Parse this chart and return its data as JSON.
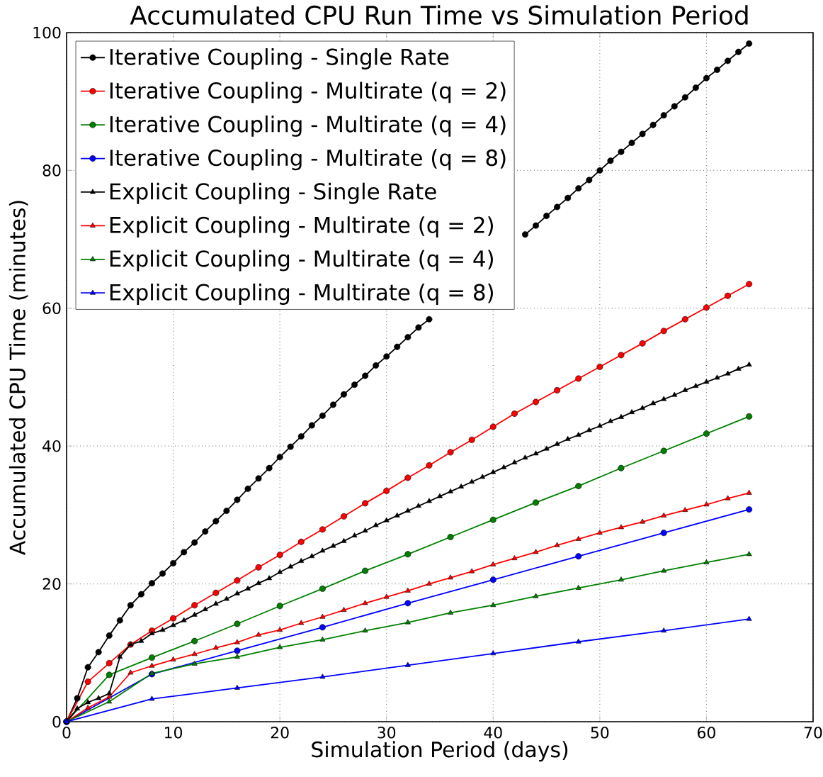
{
  "chart_data": {
    "type": "line",
    "title": "Accumulated CPU Run Time vs Simulation Period",
    "xlabel": "Simulation Period (days)",
    "ylabel": "Accumulated CPU Time (minutes)",
    "xlim": [
      0,
      70
    ],
    "ylim": [
      0,
      100
    ],
    "xticks": [
      0,
      10,
      20,
      30,
      40,
      50,
      60,
      70
    ],
    "yticks": [
      0,
      20,
      40,
      60,
      80,
      100
    ],
    "grid": true,
    "legend": "top left",
    "line_style": "solid",
    "series": [
      {
        "name": "Iterative Coupling - Single Rate",
        "color": "#000000",
        "marker": "circle",
        "x": [
          0,
          1,
          2,
          3,
          4,
          5,
          6,
          7,
          8,
          9,
          10,
          11,
          12,
          13,
          14,
          15,
          16,
          17,
          18,
          19,
          20,
          21,
          22,
          23,
          24,
          25,
          26,
          27,
          28,
          29,
          30,
          31,
          32,
          33,
          34,
          35,
          36,
          37,
          38,
          39,
          40,
          41,
          42,
          43,
          44,
          45,
          46,
          47,
          48,
          49,
          50,
          51,
          52,
          53,
          54,
          55,
          56,
          57,
          58,
          59,
          60,
          61,
          62,
          63,
          64
        ],
        "values": [
          0,
          3.4,
          7.9,
          10.1,
          12.5,
          14.7,
          16.9,
          18.5,
          20.1,
          21.5,
          23.0,
          24.6,
          26.0,
          27.6,
          29.1,
          30.6,
          32.2,
          33.8,
          35.3,
          36.8,
          38.4,
          39.9,
          41.4,
          43.0,
          44.4,
          46.0,
          47.5,
          48.9,
          50.2,
          51.7,
          53.0,
          54.4,
          55.8,
          57.2,
          58.4,
          null,
          null,
          null,
          null,
          null,
          null,
          null,
          null,
          70.7,
          72.0,
          73.4,
          74.7,
          76.0,
          77.4,
          78.6,
          80.0,
          81.4,
          82.7,
          84.0,
          85.3,
          86.6,
          88.0,
          89.3,
          90.6,
          92.0,
          93.4,
          94.6,
          95.9,
          97.2,
          98.4
        ]
      },
      {
        "name": "Iterative Coupling - Multirate (q = 2)",
        "color": "#ff0000",
        "marker": "circle",
        "x": [
          0,
          2,
          4,
          6,
          8,
          10,
          12,
          14,
          16,
          18,
          20,
          22,
          24,
          26,
          28,
          30,
          32,
          34,
          36,
          38,
          40,
          42,
          44,
          46,
          48,
          50,
          52,
          54,
          56,
          58,
          60,
          62,
          64
        ],
        "values": [
          0,
          5.8,
          8.5,
          11.2,
          13.2,
          15.0,
          16.9,
          18.7,
          20.5,
          22.4,
          24.2,
          26.1,
          27.9,
          29.8,
          31.7,
          33.5,
          35.4,
          37.2,
          39.1,
          40.9,
          42.8,
          44.7,
          46.4,
          48.1,
          49.8,
          51.5,
          53.2,
          54.9,
          56.7,
          58.4,
          60.1,
          61.8,
          63.5
        ]
      },
      {
        "name": "Iterative Coupling - Multirate (q = 4)",
        "color": "#008000",
        "marker": "circle",
        "x": [
          0,
          4,
          8,
          12,
          16,
          20,
          24,
          28,
          32,
          36,
          40,
          44,
          48,
          52,
          56,
          60,
          64
        ],
        "values": [
          0,
          6.8,
          9.3,
          11.7,
          14.2,
          16.8,
          19.3,
          21.9,
          24.3,
          26.8,
          29.3,
          31.8,
          34.2,
          36.8,
          39.3,
          41.8,
          44.3
        ]
      },
      {
        "name": "Iterative Coupling - Multirate (q = 8)",
        "color": "#0000ff",
        "marker": "circle",
        "x": [
          0,
          8,
          16,
          24,
          32,
          40,
          48,
          56,
          64
        ],
        "values": [
          0,
          6.9,
          10.3,
          13.7,
          17.2,
          20.6,
          24.0,
          27.4,
          30.8
        ]
      },
      {
        "name": "Explicit Coupling - Single Rate",
        "color": "#000000",
        "marker": "triangle",
        "x": [
          0,
          1,
          2,
          3,
          4,
          5,
          6,
          7,
          8,
          9,
          10,
          11,
          12,
          13,
          14,
          15,
          16,
          17,
          18,
          19,
          20,
          21,
          22,
          23,
          24,
          25,
          26,
          27,
          28,
          29,
          30,
          31,
          32,
          33,
          34,
          35,
          36,
          37,
          38,
          39,
          40,
          41,
          42,
          43,
          44,
          45,
          46,
          47,
          48,
          49,
          50,
          51,
          52,
          53,
          54,
          55,
          56,
          57,
          58,
          59,
          60,
          61,
          62,
          63,
          64
        ],
        "values": [
          0,
          1.9,
          2.8,
          3.4,
          4.1,
          9.4,
          11.2,
          11.7,
          12.8,
          13.3,
          14.0,
          14.7,
          15.5,
          16.3,
          17.1,
          17.8,
          18.6,
          19.3,
          20.1,
          20.8,
          21.7,
          22.5,
          23.3,
          24.0,
          24.8,
          25.5,
          26.2,
          27.0,
          27.7,
          28.5,
          29.2,
          29.9,
          30.6,
          31.3,
          32.0,
          32.7,
          33.4,
          34.1,
          34.8,
          35.5,
          36.2,
          36.9,
          37.6,
          38.3,
          38.9,
          39.6,
          40.3,
          41.0,
          41.6,
          42.3,
          42.9,
          43.6,
          44.2,
          44.9,
          45.5,
          46.2,
          46.8,
          47.4,
          48.1,
          48.7,
          49.3,
          49.9,
          50.5,
          51.2,
          51.8
        ]
      },
      {
        "name": "Explicit Coupling - Multirate (q = 2)",
        "color": "#ff0000",
        "marker": "triangle",
        "x": [
          0,
          2,
          4,
          6,
          8,
          10,
          12,
          14,
          16,
          18,
          20,
          22,
          24,
          26,
          28,
          30,
          32,
          34,
          36,
          38,
          40,
          42,
          44,
          46,
          48,
          50,
          52,
          54,
          56,
          58,
          60,
          62,
          64
        ],
        "values": [
          0,
          2.0,
          3.6,
          7.1,
          8.1,
          9.0,
          9.8,
          10.7,
          11.5,
          12.6,
          13.3,
          14.3,
          15.2,
          16.2,
          17.2,
          18.1,
          19.0,
          20.0,
          20.9,
          21.8,
          22.8,
          23.7,
          24.6,
          25.6,
          26.5,
          27.4,
          28.2,
          29.0,
          29.9,
          30.7,
          31.5,
          32.4,
          33.2
        ]
      },
      {
        "name": "Explicit Coupling - Multirate (q = 4)",
        "color": "#008000",
        "marker": "triangle",
        "x": [
          0,
          4,
          8,
          12,
          16,
          20,
          24,
          28,
          32,
          36,
          40,
          44,
          48,
          52,
          56,
          60,
          64
        ],
        "values": [
          0,
          2.9,
          7.0,
          8.4,
          9.4,
          10.8,
          11.9,
          13.2,
          14.4,
          15.8,
          16.9,
          18.2,
          19.4,
          20.6,
          21.9,
          23.1,
          24.3
        ]
      },
      {
        "name": "Explicit Coupling - Multirate (q = 8)",
        "color": "#0000ff",
        "marker": "triangle",
        "x": [
          0,
          8,
          16,
          24,
          32,
          40,
          48,
          56,
          64
        ],
        "values": [
          0,
          3.3,
          4.9,
          6.5,
          8.2,
          9.9,
          11.6,
          13.2,
          14.9
        ]
      }
    ]
  }
}
